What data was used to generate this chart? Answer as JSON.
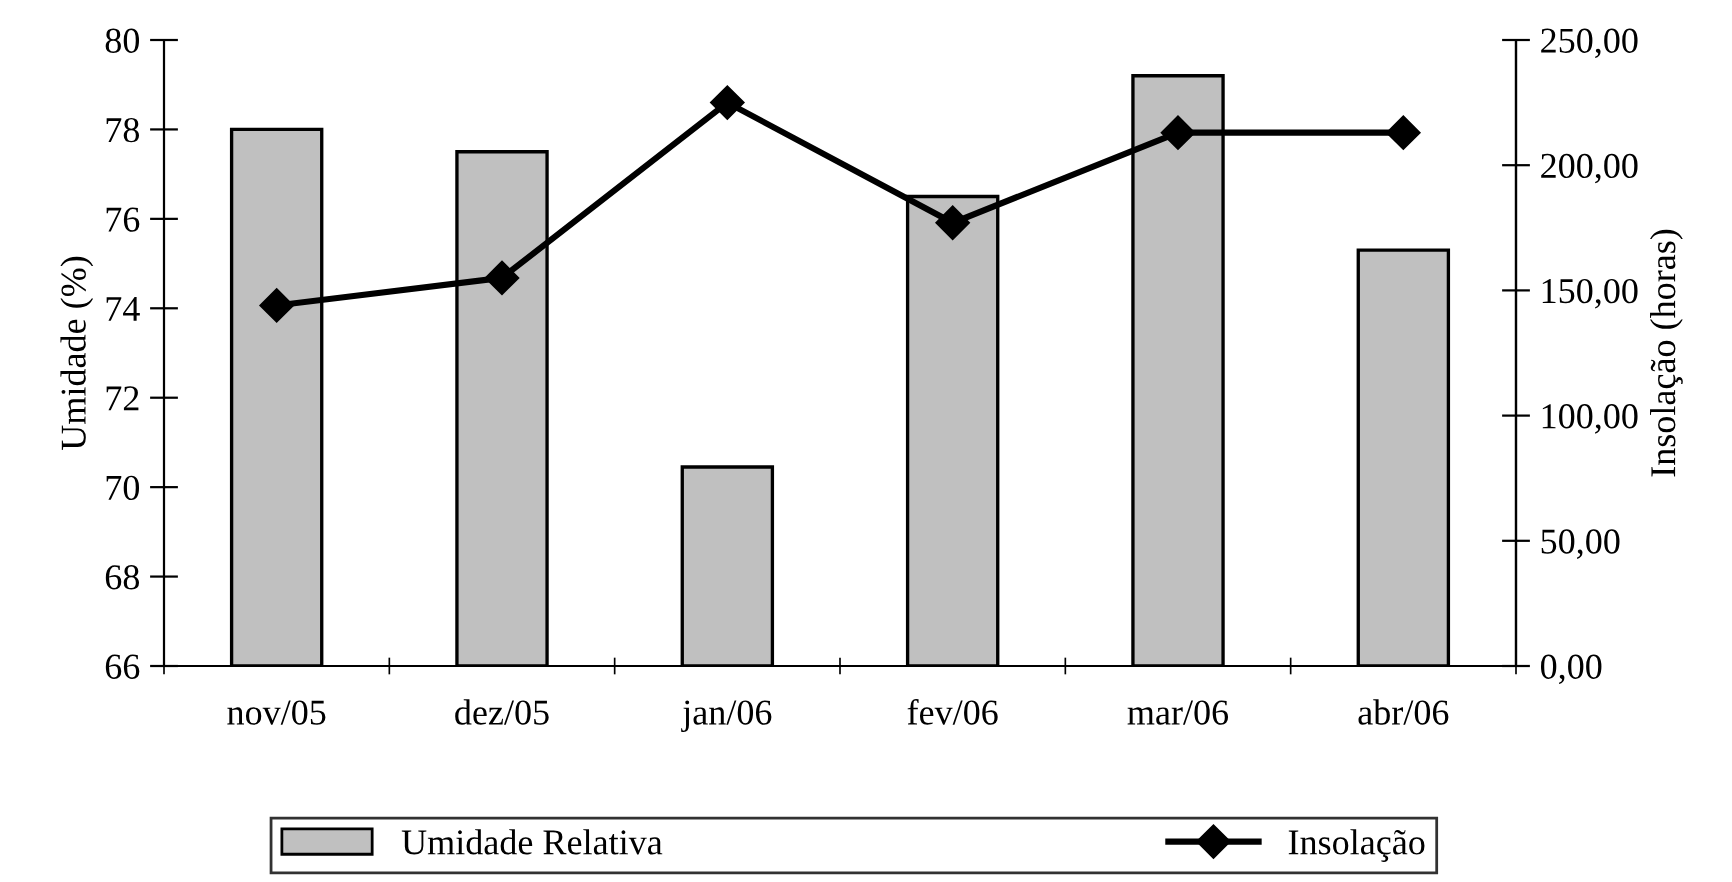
{
  "chart_data": {
    "type": "bar",
    "categories": [
      "nov/05",
      "dez/05",
      "jan/06",
      "fev/06",
      "mar/06",
      "abr/06"
    ],
    "series": [
      {
        "name": "Umidade Relativa",
        "color": "#c0c0c0",
        "values": [
          78.0,
          77.5,
          70.45,
          76.5,
          79.2,
          75.3
        ]
      },
      {
        "name": "Insolação",
        "type": "line",
        "axis": "y2",
        "color": "#000000",
        "values": [
          144,
          155,
          225,
          177,
          213,
          213
        ]
      }
    ],
    "ylabel": "Umidade (%)",
    "y2label": "Insolação (horas)",
    "ylim": [
      66,
      80
    ],
    "yticks": [
      66,
      68,
      70,
      72,
      74,
      76,
      78,
      80
    ],
    "y2lim": [
      0,
      250
    ],
    "y2ticks": [
      {
        "value": 0,
        "label": "0,00"
      },
      {
        "value": 50,
        "label": "50,00"
      },
      {
        "value": 100,
        "label": "100,00"
      },
      {
        "value": 150,
        "label": "150,00"
      },
      {
        "value": 200,
        "label": "200,00"
      },
      {
        "value": 250,
        "label": "250,00"
      }
    ],
    "marker": "diamond",
    "grid": false,
    "legend": "bottom"
  }
}
